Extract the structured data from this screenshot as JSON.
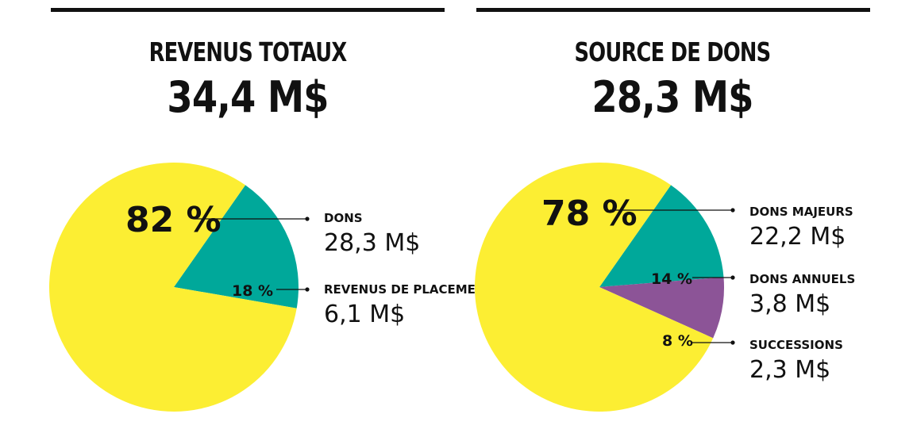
{
  "colors": {
    "yellow": "#FCEE33",
    "teal": "#00A89A",
    "purple": "#8C5497",
    "ink": "#111111"
  },
  "chart_data": [
    {
      "type": "pie",
      "title": "REVENUS TOTAUX",
      "subtitle": "34,4 M$",
      "slices": [
        {
          "label": "DONS",
          "amount": "28,3 M$",
          "percent": 82,
          "percent_label": "82 %",
          "color": "#FCEE33"
        },
        {
          "label": "REVENUS DE PLACEMENT",
          "amount": "6,1 M$",
          "percent": 18,
          "percent_label": "18 %",
          "color": "#00A89A"
        }
      ]
    },
    {
      "type": "pie",
      "title": "SOURCE DE DONS",
      "subtitle": "28,3 M$",
      "slices": [
        {
          "label": "DONS MAJEURS",
          "amount": "22,2 M$",
          "percent": 78,
          "percent_label": "78 %",
          "color": "#FCEE33"
        },
        {
          "label": "DONS ANNUELS",
          "amount": "3,8 M$",
          "percent": 14,
          "percent_label": "14 %",
          "color": "#00A89A"
        },
        {
          "label": "SUCCESSIONS",
          "amount": "2,3 M$",
          "percent": 8,
          "percent_label": "8 %",
          "color": "#8C5497"
        }
      ]
    }
  ]
}
